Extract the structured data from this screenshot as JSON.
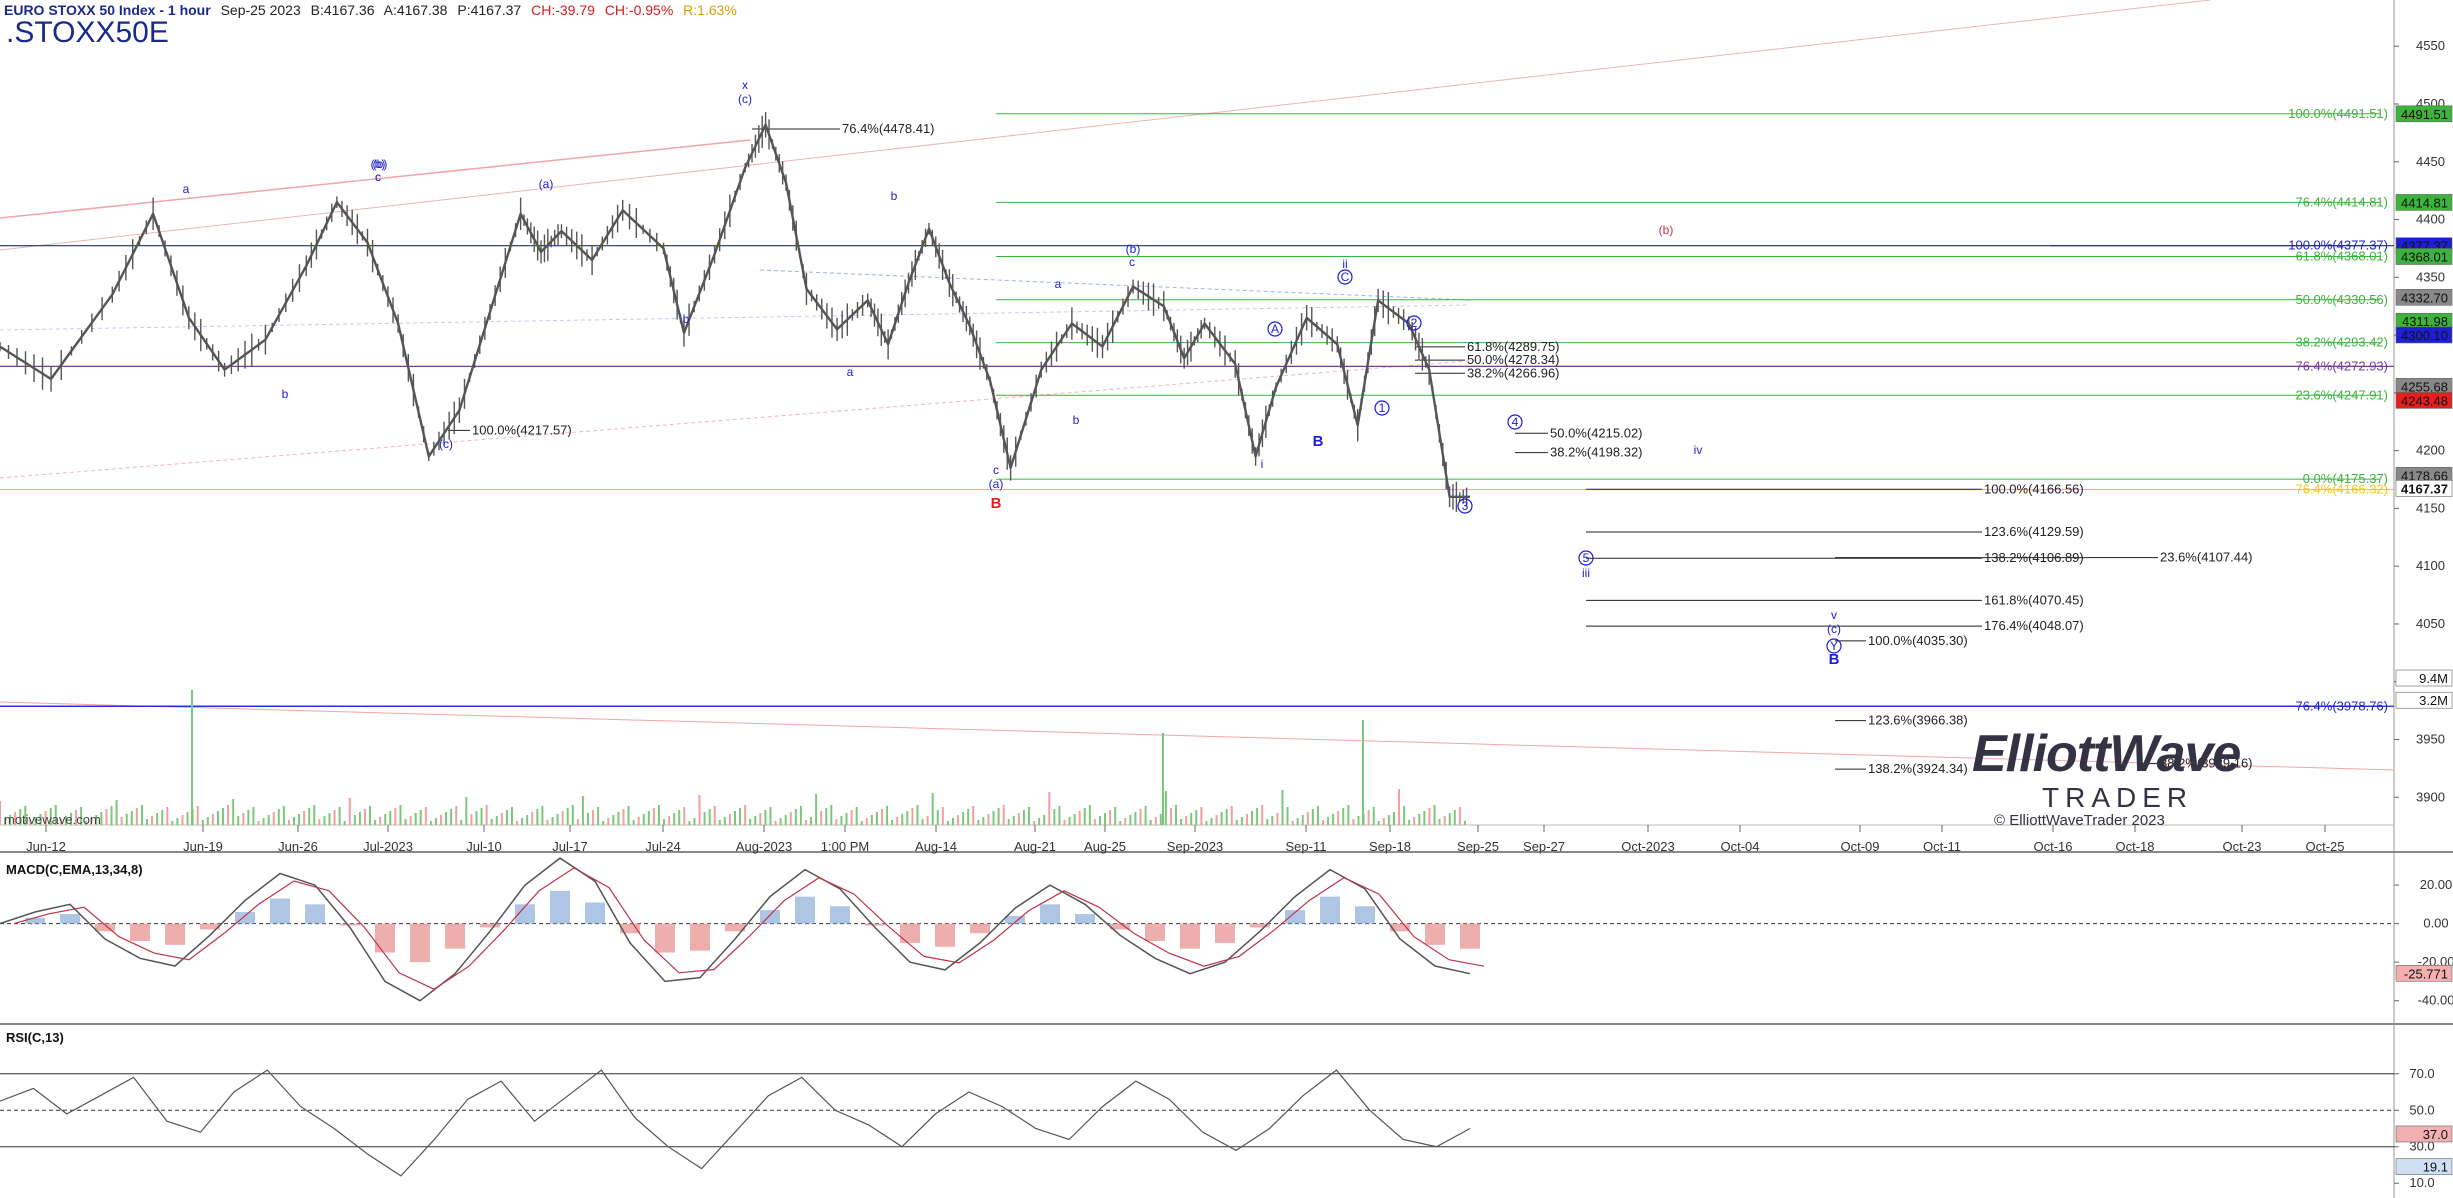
{
  "header": {
    "title": "EURO STOXX 50 Index - 1 hour",
    "date": "Sep-25 2023",
    "bid": "B:4167.36",
    "ask": "A:4167.38",
    "price": "P:4167.37",
    "change": "CH:-39.79",
    "change_pct": "CH:-0.95%",
    "range": "R:1.63%",
    "symbol": ".STOXX50E"
  },
  "watermark": "motivewave.com",
  "logo": {
    "line1": "ElliottWave",
    "line2": "TRADER",
    "line3": "© ElliottWaveTrader 2023"
  },
  "colors": {
    "bar": "#555555",
    "blue": "#1e1ed2",
    "green": "#3cb43c",
    "red": "#e61e1e",
    "purple": "#7a3c9a",
    "yellow": "#f0c814"
  },
  "chart_data": [
    {
      "type": "line",
      "panel": "price",
      "title": "EURO STOXX 50 Index - 1 hour",
      "x_tick_labels": [
        "Jun-12",
        "Jun-19",
        "Jun-26",
        "Jul-2023",
        "Jul-10",
        "Jul-17",
        "Jul-24",
        "Aug-2023",
        "1:00 PM",
        "Aug-14",
        "Aug-21",
        "Aug-25",
        "Sep-2023",
        "Sep-11",
        "Sep-18",
        "Sep-25",
        "Sep-27",
        "Oct-2023",
        "Oct-04",
        "Oct-09",
        "Oct-11",
        "Oct-16",
        "Oct-18",
        "Oct-23",
        "Oct-25"
      ],
      "y_ticks": [
        3900,
        3950,
        4000,
        4050,
        4100,
        4150,
        4200,
        4250,
        4300,
        4350,
        4400,
        4450,
        4500,
        4550
      ],
      "ylim": [
        3876,
        4590
      ],
      "price_series": {
        "name": "EURO STOXX 50",
        "points": [
          [
            0,
            4290
          ],
          [
            10,
            4262
          ],
          [
            22,
            4335
          ],
          [
            30,
            4405
          ],
          [
            37,
            4315
          ],
          [
            44,
            4270
          ],
          [
            52,
            4296
          ],
          [
            60,
            4360
          ],
          [
            66,
            4415
          ],
          [
            72,
            4380
          ],
          [
            78,
            4310
          ],
          [
            84,
            4195
          ],
          [
            90,
            4235
          ],
          [
            96,
            4320
          ],
          [
            102,
            4405
          ],
          [
            106,
            4372
          ],
          [
            110,
            4390
          ],
          [
            116,
            4365
          ],
          [
            122,
            4408
          ],
          [
            130,
            4375
          ],
          [
            134,
            4302
          ],
          [
            140,
            4370
          ],
          [
            146,
            4445
          ],
          [
            150,
            4482
          ],
          [
            154,
            4432
          ],
          [
            158,
            4340
          ],
          [
            164,
            4305
          ],
          [
            170,
            4330
          ],
          [
            174,
            4292
          ],
          [
            178,
            4345
          ],
          [
            182,
            4392
          ],
          [
            186,
            4345
          ],
          [
            190,
            4308
          ],
          [
            194,
            4260
          ],
          [
            198,
            4185
          ],
          [
            204,
            4270
          ],
          [
            210,
            4310
          ],
          [
            216,
            4290
          ],
          [
            222,
            4342
          ],
          [
            228,
            4325
          ],
          [
            232,
            4280
          ],
          [
            236,
            4310
          ],
          [
            242,
            4275
          ],
          [
            246,
            4195
          ],
          [
            250,
            4255
          ],
          [
            256,
            4315
          ],
          [
            262,
            4292
          ],
          [
            266,
            4222
          ],
          [
            270,
            4330
          ],
          [
            276,
            4310
          ],
          [
            280,
            4270
          ],
          [
            284,
            4160
          ],
          [
            288,
            4160
          ]
        ]
      },
      "last_price": 4167.37,
      "price_labels": [
        {
          "value": 4491.51,
          "label": "4491.51"
        },
        {
          "value": 4414.81,
          "label": "4414.81"
        },
        {
          "value": 4377.37,
          "label": "4377.37"
        },
        {
          "value": 4368.01,
          "label": "4368.01"
        },
        {
          "value": 4332.7,
          "label": "4332.70"
        },
        {
          "value": 4311.98,
          "label": "4311.98"
        },
        {
          "value": 4300.1,
          "label": "4300.10"
        },
        {
          "value": 4255.68,
          "label": "4255.68"
        },
        {
          "value": 4243.48,
          "label": "4243.48"
        },
        {
          "value": 4178.66,
          "label": "4178.66"
        },
        {
          "value": 4167.37,
          "label": "4167.37"
        },
        {
          "value": 4003.2,
          "label": "9.4M"
        },
        {
          "value": 3984.0,
          "label": "3.2M"
        }
      ],
      "fib_levels": [
        {
          "text": "100.0%(4491.51)",
          "value": 4491.51,
          "color": "green"
        },
        {
          "text": "76.4%(4414.81)",
          "value": 4414.81,
          "color": "green"
        },
        {
          "text": "100.0%(4377.37)",
          "value": 4377.37,
          "color": "blue"
        },
        {
          "text": "61.8%(4368.01)",
          "value": 4368.01,
          "color": "green"
        },
        {
          "text": "50.0%(4330.56)",
          "value": 4330.56,
          "color": "green"
        },
        {
          "text": "38.2%(4293.42)",
          "value": 4293.42,
          "color": "green"
        },
        {
          "text": "76.4%(4272.93)",
          "value": 4272.93,
          "color": "purple"
        },
        {
          "text": "23.6%(4247.91)",
          "value": 4247.91,
          "color": "green"
        },
        {
          "text": "0.0%(4175.37)",
          "value": 4175.37,
          "color": "green"
        },
        {
          "text": "76.4%(4166.32)",
          "value": 4166.32,
          "color": "yellow"
        },
        {
          "text": "76.4%(3978.76)",
          "value": 3978.76,
          "color": "blue"
        },
        {
          "text": "76.4%(4478.41)",
          "value": 4478.41,
          "color": "black"
        },
        {
          "text": "100.0%(4217.57)",
          "value": 4217.57,
          "color": "black"
        },
        {
          "text": "61.8%(4289.75)",
          "value": 4289.75,
          "color": "black"
        },
        {
          "text": "50.0%(4278.34)",
          "value": 4278.34,
          "color": "black"
        },
        {
          "text": "38.2%(4266.96)",
          "value": 4266.96,
          "color": "black"
        },
        {
          "text": "50.0%(4215.02)",
          "value": 4215.02,
          "color": "black"
        },
        {
          "text": "38.2%(4198.32)",
          "value": 4198.32,
          "color": "black"
        },
        {
          "text": "100.0%(4166.56)",
          "value": 4166.56,
          "color": "black"
        },
        {
          "text": "123.6%(4129.59)",
          "value": 4129.59,
          "color": "black"
        },
        {
          "text": "138.2%(4106.89)",
          "value": 4106.89,
          "color": "black"
        },
        {
          "text": "23.6%(4107.44)",
          "value": 4107.44,
          "color": "black"
        },
        {
          "text": "161.8%(4070.45)",
          "value": 4070.45,
          "color": "black"
        },
        {
          "text": "176.4%(4048.07)",
          "value": 4048.07,
          "color": "black"
        },
        {
          "text": "100.0%(4035.30)",
          "value": 4035.3,
          "color": "black"
        },
        {
          "text": "123.6%(3966.38)",
          "value": 3966.38,
          "color": "black"
        },
        {
          "text": "138.2%(3924.34)",
          "value": 3924.34,
          "color": "black"
        },
        {
          "text": "38.2%(3929.16)",
          "value": 3929.16,
          "color": "black"
        }
      ],
      "wave_labels": [
        "a",
        "(b)",
        "c",
        "b",
        "(a)",
        "(c)",
        "(c)",
        "x",
        "b",
        "(b)",
        "c",
        "b",
        "a",
        "(a)",
        "c",
        "B",
        "a",
        "(b)",
        "c",
        "b",
        "A",
        "i",
        "B",
        "ii",
        "C",
        "1",
        "2",
        "3",
        "4",
        "(b)",
        "iv",
        "5",
        "iii",
        "v",
        "(c)",
        "Y",
        "B"
      ]
    },
    {
      "type": "line",
      "panel": "macd",
      "title": "MACD(C,EMA,13,34,8)",
      "y_ticks": [
        20,
        0,
        -20,
        -40
      ],
      "ylim": [
        -50,
        33
      ],
      "current_label": "-25.771"
    },
    {
      "type": "line",
      "panel": "rsi",
      "title": "RSI(C,13)",
      "y_ticks": [
        70,
        50,
        30,
        10
      ],
      "ylim": [
        3,
        94
      ],
      "levels": [
        70,
        50,
        30
      ],
      "current_labels": [
        "37.0",
        "19.1"
      ]
    }
  ]
}
